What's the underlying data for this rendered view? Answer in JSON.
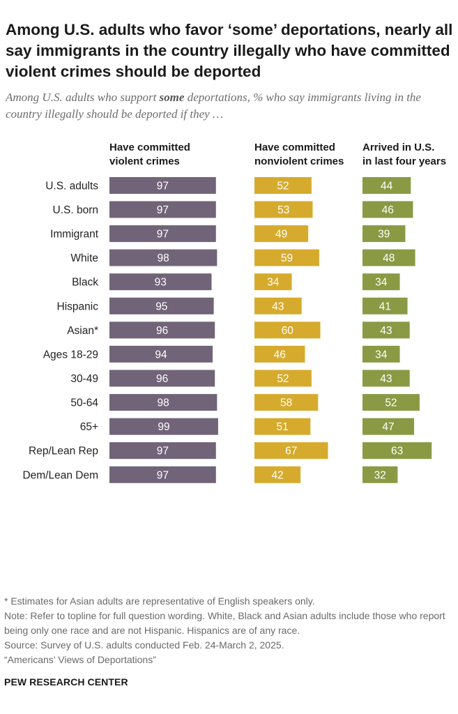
{
  "title": "Among U.S. adults who favor ‘some’ deportations, nearly all say immigrants in the country illegally who have committed violent crimes should be deported",
  "subtitle": {
    "before": "Among U.S. adults who support ",
    "emphasis": "some",
    "after": " deportations, % who say immigrants living in the country illegally should be deported if they …"
  },
  "colors": {
    "violent": "#716478",
    "nonviolent": "#d6ab2d",
    "recent": "#8a9a44",
    "label": "#222222",
    "value_text": "#ffffff"
  },
  "chart_data": {
    "type": "bar",
    "orientation": "horizontal",
    "series": [
      {
        "name": "Have committed violent crimes",
        "header": [
          "Have committed",
          "violent crimes"
        ],
        "values": [
          97,
          97,
          97,
          98,
          93,
          95,
          96,
          94,
          96,
          98,
          99,
          97,
          97
        ]
      },
      {
        "name": "Have committed nonviolent crimes",
        "header": [
          "Have committed",
          "nonviolent crimes"
        ],
        "values": [
          52,
          53,
          49,
          59,
          34,
          43,
          60,
          46,
          52,
          58,
          51,
          67,
          42
        ]
      },
      {
        "name": "Arrived in U.S. in last four years",
        "header": [
          "Arrived in U.S.",
          "in last four years"
        ],
        "values": [
          44,
          46,
          39,
          48,
          34,
          41,
          43,
          34,
          43,
          52,
          47,
          63,
          32
        ]
      }
    ],
    "categories": [
      "U.S. adults",
      "U.S. born",
      "Immigrant",
      "White",
      "Black",
      "Hispanic",
      "Asian*",
      "Ages 18-29",
      "30-49",
      "50-64",
      "65+",
      "Rep/Lean Rep",
      "Dem/Lean Dem"
    ],
    "groups": [
      [
        0
      ],
      [
        1,
        2
      ],
      [
        3,
        4,
        5,
        6
      ],
      [
        7,
        8,
        9,
        10
      ],
      [
        11,
        12
      ]
    ],
    "xlim": [
      0,
      100
    ]
  },
  "notes": {
    "asterisk": "* Estimates for Asian adults are representative of English speakers only.",
    "note": "Note: Refer to topline for full question wording. White, Black and Asian adults include those who report being only one race and are not Hispanic. Hispanics are of any race.",
    "source": "Source: Survey of U.S. adults conducted Feb. 24-March 2, 2025.",
    "report": "“Americans’ Views of Deportations”"
  },
  "brand": "PEW RESEARCH CENTER"
}
